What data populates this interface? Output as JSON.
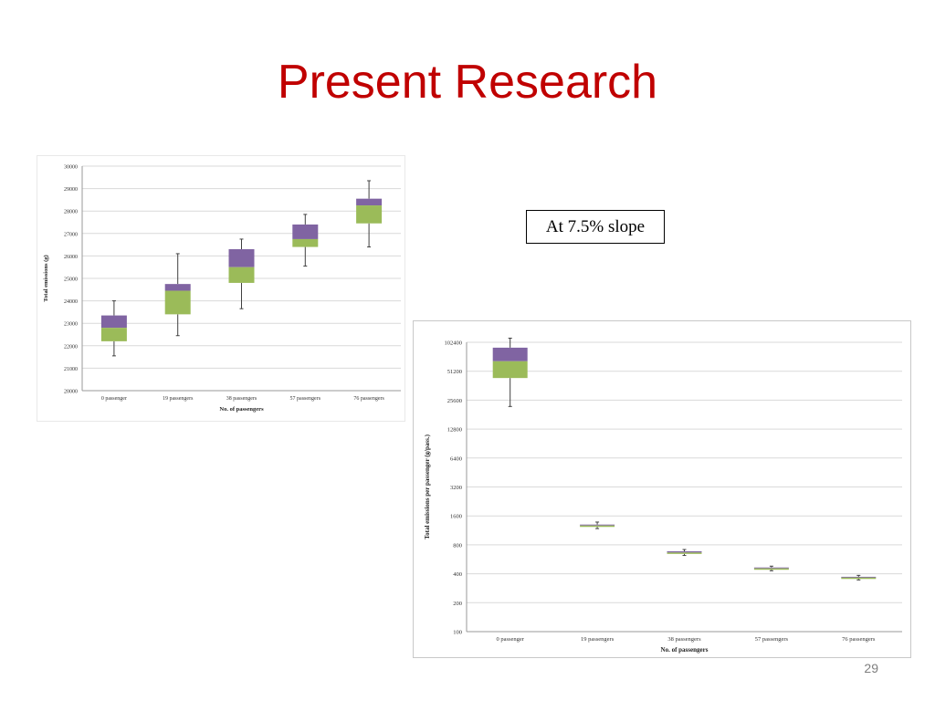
{
  "slide": {
    "title": "Present Research",
    "slope_label": "At 7.5% slope",
    "page_number": "29"
  },
  "colors": {
    "title": "#c00000",
    "box_upper": "#8064a2",
    "box_lower": "#9bbb59",
    "whisker": "#404040",
    "grid": "#d9d9d9"
  },
  "chart_data": [
    {
      "type": "box",
      "title": "",
      "xlabel": "No. of passengers",
      "ylabel": "Total emissions (g)",
      "categories": [
        "0 passenger",
        "19 passengers",
        "38 passengers",
        "57 passengers",
        "76 passengers"
      ],
      "ylim": [
        20000,
        30000
      ],
      "yticks": [
        "20000",
        "21000",
        "22000",
        "23000",
        "24000",
        "25000",
        "26000",
        "27000",
        "28000",
        "29000",
        "30000"
      ],
      "grid": true,
      "boxes": [
        {
          "min": 21550,
          "q1": 22200,
          "median": 22800,
          "q3": 23350,
          "max": 24000
        },
        {
          "min": 22450,
          "q1": 23400,
          "median": 24450,
          "q3": 24750,
          "max": 26100
        },
        {
          "min": 23650,
          "q1": 24800,
          "median": 25500,
          "q3": 26300,
          "max": 26750
        },
        {
          "min": 25550,
          "q1": 26400,
          "median": 26750,
          "q3": 27400,
          "max": 27850
        },
        {
          "min": 26400,
          "q1": 27450,
          "median": 28250,
          "q3": 28550,
          "max": 29350
        }
      ]
    },
    {
      "type": "box",
      "title": "",
      "xlabel": "No. of passengers",
      "ylabel": "Total emissions per passenger (g/pass.)",
      "yscale": "log2",
      "categories": [
        "0 passenger",
        "19 passengers",
        "38 passengers",
        "57 passengers",
        "76 passengers"
      ],
      "ylim": [
        100,
        102400
      ],
      "yticks": [
        "100",
        "200",
        "400",
        "800",
        "1600",
        "3200",
        "6400",
        "12800",
        "25600",
        "51200",
        "102400"
      ],
      "grid": true,
      "boxes": [
        {
          "min": 22000,
          "q1": 43500,
          "median": 65000,
          "q3": 90000,
          "max": 113000
        },
        {
          "min": 1180,
          "q1": 1230,
          "median": 1270,
          "q3": 1300,
          "max": 1380
        },
        {
          "min": 620,
          "q1": 645,
          "median": 665,
          "q3": 685,
          "max": 715
        },
        {
          "min": 430,
          "q1": 445,
          "median": 455,
          "q3": 465,
          "max": 480
        },
        {
          "min": 345,
          "q1": 358,
          "median": 365,
          "q3": 372,
          "max": 385
        }
      ]
    }
  ]
}
